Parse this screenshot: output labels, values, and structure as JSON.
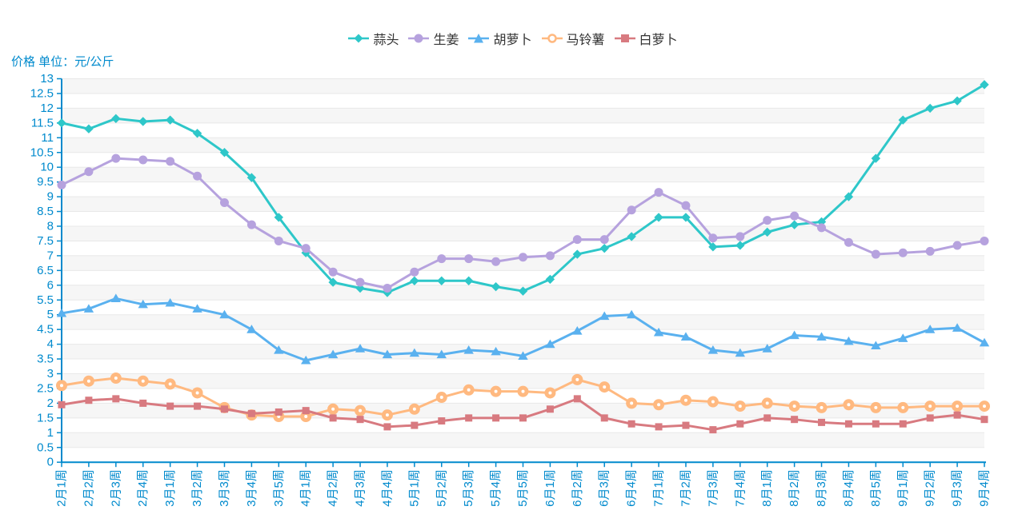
{
  "page": {
    "background": "#ffffff"
  },
  "axis": {
    "color": "#008acd",
    "grid_color": "#e8e8e8",
    "band_color": "#f6f6f6",
    "legend_text_color": "#333333"
  },
  "chart_data": {
    "type": "line",
    "title": "",
    "ylabel": "价格 单位：元/公斤",
    "xlabel": "",
    "ylim": [
      0,
      13
    ],
    "y_tick_step": 0.5,
    "grid": true,
    "legend_position": "top-center",
    "categories": [
      "2月1周",
      "2月2周",
      "2月3周",
      "2月4周",
      "3月1周",
      "3月2周",
      "3月3周",
      "3月4周",
      "3月5周",
      "4月1周",
      "4月2周",
      "4月3周",
      "4月4周",
      "5月1周",
      "5月2周",
      "5月3周",
      "5月4周",
      "5月5周",
      "6月1周",
      "6月2周",
      "6月3周",
      "6月4周",
      "7月1周",
      "7月2周",
      "7月3周",
      "7月4周",
      "8月1周",
      "8月2周",
      "8月3周",
      "8月4周",
      "8月5周",
      "9月1周",
      "9月2周",
      "9月3周",
      "9月4周"
    ],
    "series": [
      {
        "name": "蒜头",
        "symbol": "diamond",
        "color": "#2ec7c9",
        "values": [
          11.5,
          11.3,
          11.65,
          11.55,
          11.6,
          11.15,
          10.5,
          9.65,
          8.3,
          7.1,
          6.1,
          5.9,
          5.75,
          6.15,
          6.15,
          6.15,
          5.95,
          5.8,
          6.2,
          7.05,
          7.25,
          7.65,
          8.3,
          8.3,
          7.3,
          7.35,
          7.8,
          8.05,
          8.15,
          9.0,
          10.3,
          11.6,
          12.0,
          12.25,
          12.8
        ]
      },
      {
        "name": "生姜",
        "symbol": "circle",
        "color": "#b6a2de",
        "values": [
          9.4,
          9.85,
          10.3,
          10.25,
          10.2,
          9.7,
          8.8,
          8.05,
          7.5,
          7.25,
          6.45,
          6.1,
          5.9,
          6.45,
          6.9,
          6.9,
          6.8,
          6.95,
          7.0,
          7.55,
          7.55,
          8.55,
          9.15,
          8.7,
          7.6,
          7.65,
          8.2,
          8.35,
          7.95,
          7.45,
          7.05,
          7.1,
          7.15,
          7.35,
          7.5
        ]
      },
      {
        "name": "胡萝卜",
        "symbol": "triangle",
        "color": "#5ab1ef",
        "values": [
          5.05,
          5.2,
          5.55,
          5.35,
          5.4,
          5.2,
          5.0,
          4.5,
          3.8,
          3.45,
          3.65,
          3.85,
          3.65,
          3.7,
          3.65,
          3.8,
          3.75,
          3.6,
          4.0,
          4.45,
          4.95,
          5.0,
          4.4,
          4.25,
          3.8,
          3.7,
          3.85,
          4.3,
          4.25,
          4.1,
          3.95,
          4.2,
          4.5,
          4.55,
          4.05
        ]
      },
      {
        "name": "马铃薯",
        "symbol": "ring",
        "color": "#ffb980",
        "values": [
          2.6,
          2.75,
          2.85,
          2.75,
          2.65,
          2.35,
          1.85,
          1.6,
          1.55,
          1.55,
          1.8,
          1.75,
          1.6,
          1.8,
          2.2,
          2.45,
          2.4,
          2.4,
          2.35,
          2.8,
          2.55,
          2.0,
          1.95,
          2.1,
          2.05,
          1.9,
          2.0,
          1.9,
          1.85,
          1.95,
          1.85,
          1.85,
          1.9,
          1.9,
          1.9
        ]
      },
      {
        "name": "白萝卜",
        "symbol": "square",
        "color": "#d87a80",
        "values": [
          1.95,
          2.1,
          2.15,
          2.0,
          1.9,
          1.9,
          1.8,
          1.65,
          1.7,
          1.75,
          1.5,
          1.45,
          1.2,
          1.25,
          1.4,
          1.5,
          1.5,
          1.5,
          1.8,
          2.15,
          1.5,
          1.3,
          1.2,
          1.25,
          1.1,
          1.3,
          1.5,
          1.45,
          1.35,
          1.3,
          1.3,
          1.3,
          1.5,
          1.6,
          1.45
        ]
      }
    ]
  }
}
